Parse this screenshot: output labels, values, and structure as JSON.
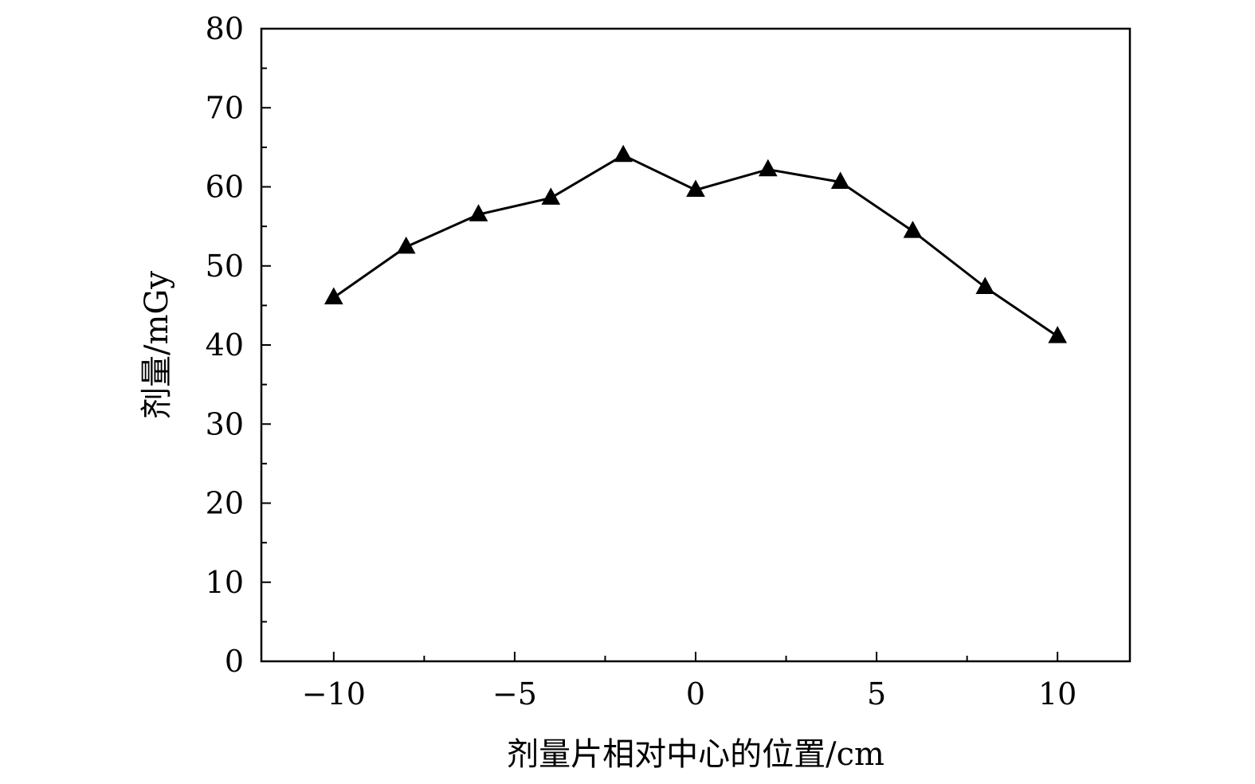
{
  "chart_data": {
    "type": "line",
    "title": "",
    "xlabel": "剂量片相对中心的位置/cm",
    "ylabel": "剂量/mGy",
    "xlim": [
      -12,
      12
    ],
    "ylim": [
      0,
      80
    ],
    "x_ticks": [
      -10,
      -5,
      0,
      5,
      10
    ],
    "x_tick_labels": [
      "−10",
      "−5",
      "0",
      "5",
      "10"
    ],
    "x_minor_ticks": [
      -7.5,
      -2.5,
      2.5,
      7.5
    ],
    "y_ticks": [
      0,
      10,
      20,
      30,
      40,
      50,
      60,
      70,
      80
    ],
    "y_tick_labels": [
      "0",
      "10",
      "20",
      "30",
      "40",
      "50",
      "60",
      "70",
      "80"
    ],
    "y_minor_ticks": [
      5,
      15,
      25,
      35,
      45,
      55,
      65,
      75
    ],
    "grid": false,
    "marker": "triangle",
    "color": "#000000",
    "series": [
      {
        "x": [
          -10,
          -8,
          -6,
          -4,
          -2,
          0,
          2,
          4,
          6,
          8,
          10
        ],
        "y": [
          46.0,
          52.4,
          56.5,
          58.6,
          64.0,
          59.6,
          62.2,
          60.6,
          54.4,
          47.3,
          41.1
        ]
      }
    ]
  }
}
